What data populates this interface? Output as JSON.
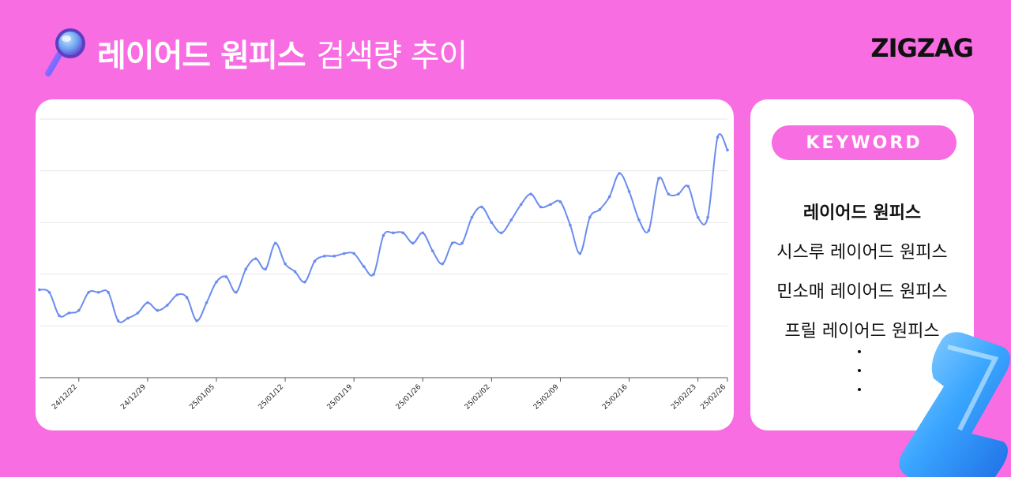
{
  "header": {
    "title_bold": "레이어드 원피스",
    "title_light": "검색량 추이",
    "logo": "ZIGZAG",
    "icon": "magnifier-icon"
  },
  "keyword_panel": {
    "label": "KEYWORD",
    "items": [
      "레이어드 원피스",
      "시스루 레이어드 원피스",
      "민소매 레이어드 원피스",
      "프릴 레이어드 원피스"
    ],
    "more": "⋮"
  },
  "colors": {
    "background": "#f86de2",
    "line": "#6b8cf0",
    "card": "#ffffff"
  },
  "chart_data": {
    "type": "line",
    "title": "레이어드 원피스 검색량 추이",
    "x_tick_labels": [
      "24/12/22",
      "24/12/29",
      "25/01/05",
      "25/01/12",
      "25/01/19",
      "25/01/26",
      "25/02/02",
      "25/02/09",
      "25/02/16",
      "25/02/23",
      "25/02/26"
    ],
    "x_start": "2024-12-18",
    "x_end": "2025-02-26",
    "y_axis_labels_shown": false,
    "grid": true,
    "legend": "none",
    "ylim": [
      0,
      100
    ],
    "series": [
      {
        "values": [
          [
            "2024-12-18",
            34
          ],
          [
            "2024-12-19",
            33
          ],
          [
            "2024-12-20",
            24
          ],
          [
            "2024-12-21",
            25
          ],
          [
            "2024-12-22",
            26
          ],
          [
            "2024-12-23",
            33
          ],
          [
            "2024-12-24",
            33
          ],
          [
            "2024-12-25",
            33
          ],
          [
            "2024-12-26",
            22
          ],
          [
            "2024-12-27",
            23
          ],
          [
            "2024-12-28",
            25
          ],
          [
            "2024-12-29",
            29
          ],
          [
            "2024-12-30",
            26
          ],
          [
            "2024-12-31",
            28
          ],
          [
            "2025-01-01",
            32
          ],
          [
            "2025-01-02",
            31
          ],
          [
            "2025-01-03",
            22
          ],
          [
            "2025-01-04",
            29
          ],
          [
            "2025-01-05",
            37
          ],
          [
            "2025-01-06",
            39
          ],
          [
            "2025-01-07",
            33
          ],
          [
            "2025-01-08",
            42
          ],
          [
            "2025-01-09",
            46
          ],
          [
            "2025-01-10",
            42
          ],
          [
            "2025-01-11",
            52
          ],
          [
            "2025-01-12",
            44
          ],
          [
            "2025-01-13",
            41
          ],
          [
            "2025-01-14",
            37
          ],
          [
            "2025-01-15",
            45
          ],
          [
            "2025-01-16",
            47
          ],
          [
            "2025-01-17",
            47
          ],
          [
            "2025-01-18",
            48
          ],
          [
            "2025-01-19",
            48
          ],
          [
            "2025-01-20",
            43
          ],
          [
            "2025-01-21",
            40
          ],
          [
            "2025-01-22",
            55
          ],
          [
            "2025-01-23",
            56
          ],
          [
            "2025-01-24",
            56
          ],
          [
            "2025-01-25",
            52
          ],
          [
            "2025-01-26",
            56
          ],
          [
            "2025-01-27",
            49
          ],
          [
            "2025-01-28",
            44
          ],
          [
            "2025-01-29",
            52
          ],
          [
            "2025-01-30",
            52
          ],
          [
            "2025-01-31",
            62
          ],
          [
            "2025-02-01",
            66
          ],
          [
            "2025-02-02",
            60
          ],
          [
            "2025-02-03",
            56
          ],
          [
            "2025-02-04",
            61
          ],
          [
            "2025-02-05",
            67
          ],
          [
            "2025-02-06",
            71
          ],
          [
            "2025-02-07",
            66
          ],
          [
            "2025-02-08",
            67
          ],
          [
            "2025-02-09",
            68
          ],
          [
            "2025-02-10",
            59
          ],
          [
            "2025-02-11",
            48
          ],
          [
            "2025-02-12",
            62
          ],
          [
            "2025-02-13",
            65
          ],
          [
            "2025-02-14",
            70
          ],
          [
            "2025-02-15",
            79
          ],
          [
            "2025-02-16",
            72
          ],
          [
            "2025-02-17",
            61
          ],
          [
            "2025-02-18",
            57
          ],
          [
            "2025-02-19",
            77
          ],
          [
            "2025-02-20",
            71
          ],
          [
            "2025-02-21",
            71
          ],
          [
            "2025-02-22",
            74
          ],
          [
            "2025-02-23",
            62
          ],
          [
            "2025-02-24",
            62
          ],
          [
            "2025-02-25",
            93
          ],
          [
            "2025-02-26",
            88
          ]
        ]
      }
    ]
  }
}
